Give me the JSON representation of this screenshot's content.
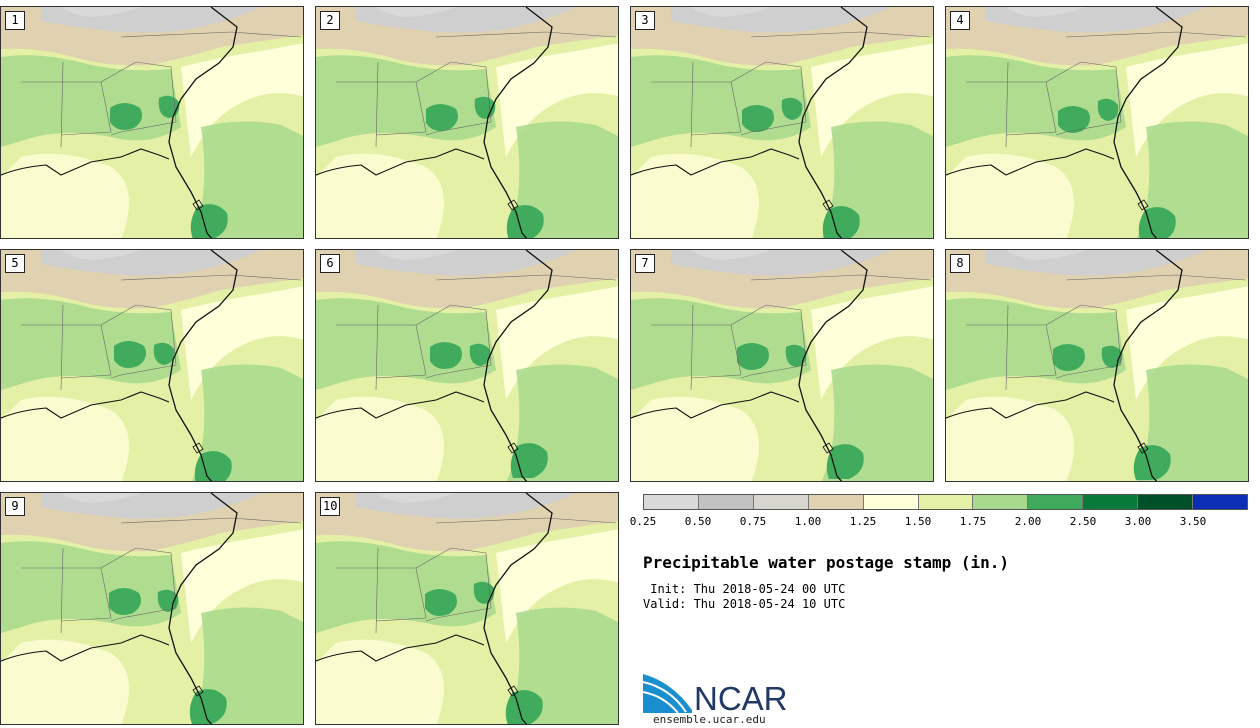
{
  "panels": [
    {
      "label": "1"
    },
    {
      "label": "2"
    },
    {
      "label": "3"
    },
    {
      "label": "4"
    },
    {
      "label": "5"
    },
    {
      "label": "6"
    },
    {
      "label": "7"
    },
    {
      "label": "8"
    },
    {
      "label": "9"
    },
    {
      "label": "10"
    }
  ],
  "colorbar": {
    "colors": [
      "#d9d9d9",
      "#c2c2c2",
      "#d6d6cf",
      "#e0d2b0",
      "#ffffd9",
      "#e3f0a6",
      "#a8d98c",
      "#41ab5d",
      "#077a3a",
      "#00512a",
      "#0a2fb5"
    ],
    "ticks": [
      "0.25",
      "0.50",
      "0.75",
      "1.00",
      "1.25",
      "1.50",
      "1.75",
      "2.00",
      "2.50",
      "3.00",
      "3.50"
    ]
  },
  "title": "Precipitable water postage stamp (in.)",
  "init_line": " Init: Thu 2018-05-24 00 UTC",
  "valid_line": "Valid: Thu 2018-05-24 10 UTC",
  "logo": {
    "name": "NCAR",
    "url": "ensemble.ucar.edu"
  }
}
